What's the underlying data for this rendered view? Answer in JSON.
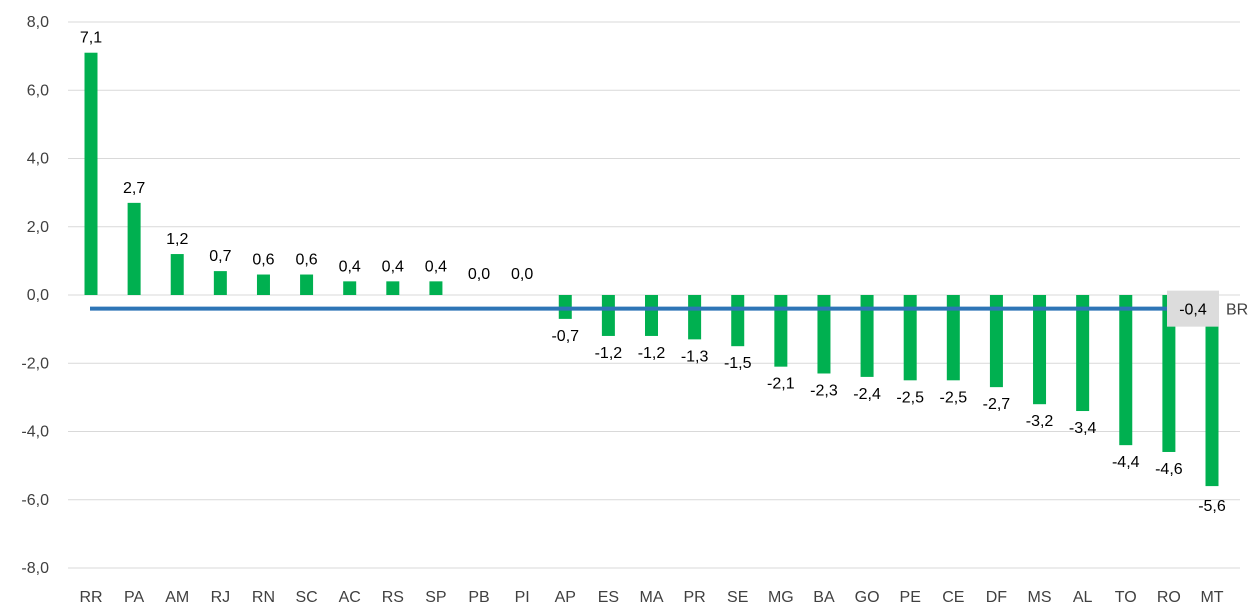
{
  "chart_data": {
    "type": "bar",
    "categories": [
      "RR",
      "PA",
      "AM",
      "RJ",
      "RN",
      "SC",
      "AC",
      "RS",
      "SP",
      "PB",
      "PI",
      "AP",
      "ES",
      "MA",
      "PR",
      "SE",
      "MG",
      "BA",
      "GO",
      "PE",
      "CE",
      "DF",
      "MS",
      "AL",
      "TO",
      "RO",
      "MT"
    ],
    "values": [
      7.1,
      2.7,
      1.2,
      0.7,
      0.6,
      0.6,
      0.4,
      0.4,
      0.4,
      0.0,
      0.0,
      -0.7,
      -1.2,
      -1.2,
      -1.3,
      -1.5,
      -2.1,
      -2.3,
      -2.4,
      -2.5,
      -2.5,
      -2.7,
      -3.2,
      -3.4,
      -4.4,
      -4.6,
      -5.6
    ],
    "data_labels": [
      "7,1",
      "2,7",
      "1,2",
      "0,7",
      "0,6",
      "0,6",
      "0,4",
      "0,4",
      "0,4",
      "0,0",
      "0,0",
      "-0,7",
      "-1,2",
      "-1,2",
      "-1,3",
      "-1,5",
      "-2,1",
      "-2,3",
      "-2,4",
      "-2,5",
      "-2,5",
      "-2,7",
      "-3,2",
      "-3,4",
      "-4,4",
      "-4,6",
      "-5,6"
    ],
    "ylim": [
      -8,
      8
    ],
    "yticks": [
      8,
      6,
      4,
      2,
      0,
      -2,
      -4,
      -6,
      -8
    ],
    "ytick_labels": [
      "8,0",
      "6,0",
      "4,0",
      "2,0",
      "0,0",
      "-2,0",
      "-4,0",
      "-6,0",
      "-8,0"
    ],
    "grid": true,
    "bar_color": "#00b050",
    "reference_line": {
      "value": -0.4,
      "value_label": "-0,4",
      "label": "BR",
      "color": "#2e75b6"
    }
  }
}
